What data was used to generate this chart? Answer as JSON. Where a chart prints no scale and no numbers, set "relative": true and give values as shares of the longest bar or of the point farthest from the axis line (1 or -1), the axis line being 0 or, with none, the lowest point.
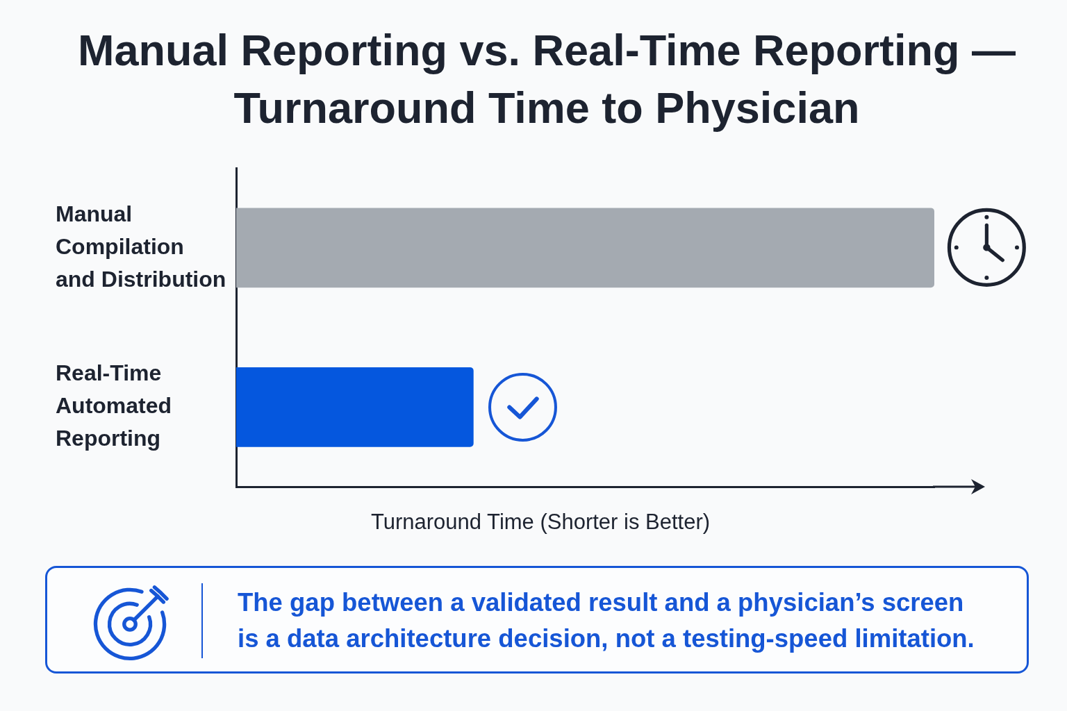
{
  "chart_data": {
    "type": "bar",
    "orientation": "horizontal",
    "title": "Manual Reporting vs. Real-Time Reporting — Turnaround Time to Physician",
    "xlabel": "Turnaround Time (Shorter is Better)",
    "categories": [
      "Manual Compilation and Distribution",
      "Real-Time Automated Reporting"
    ],
    "values": [
      1,
      0.34
    ],
    "colors": [
      "#a4aab1",
      "#0557de"
    ],
    "relative": true,
    "grid": false,
    "legend": false,
    "annotations": [
      "The gap between a validated result and a physician’s screen is a data architecture decision, not a testing-speed limitation."
    ]
  }
}
